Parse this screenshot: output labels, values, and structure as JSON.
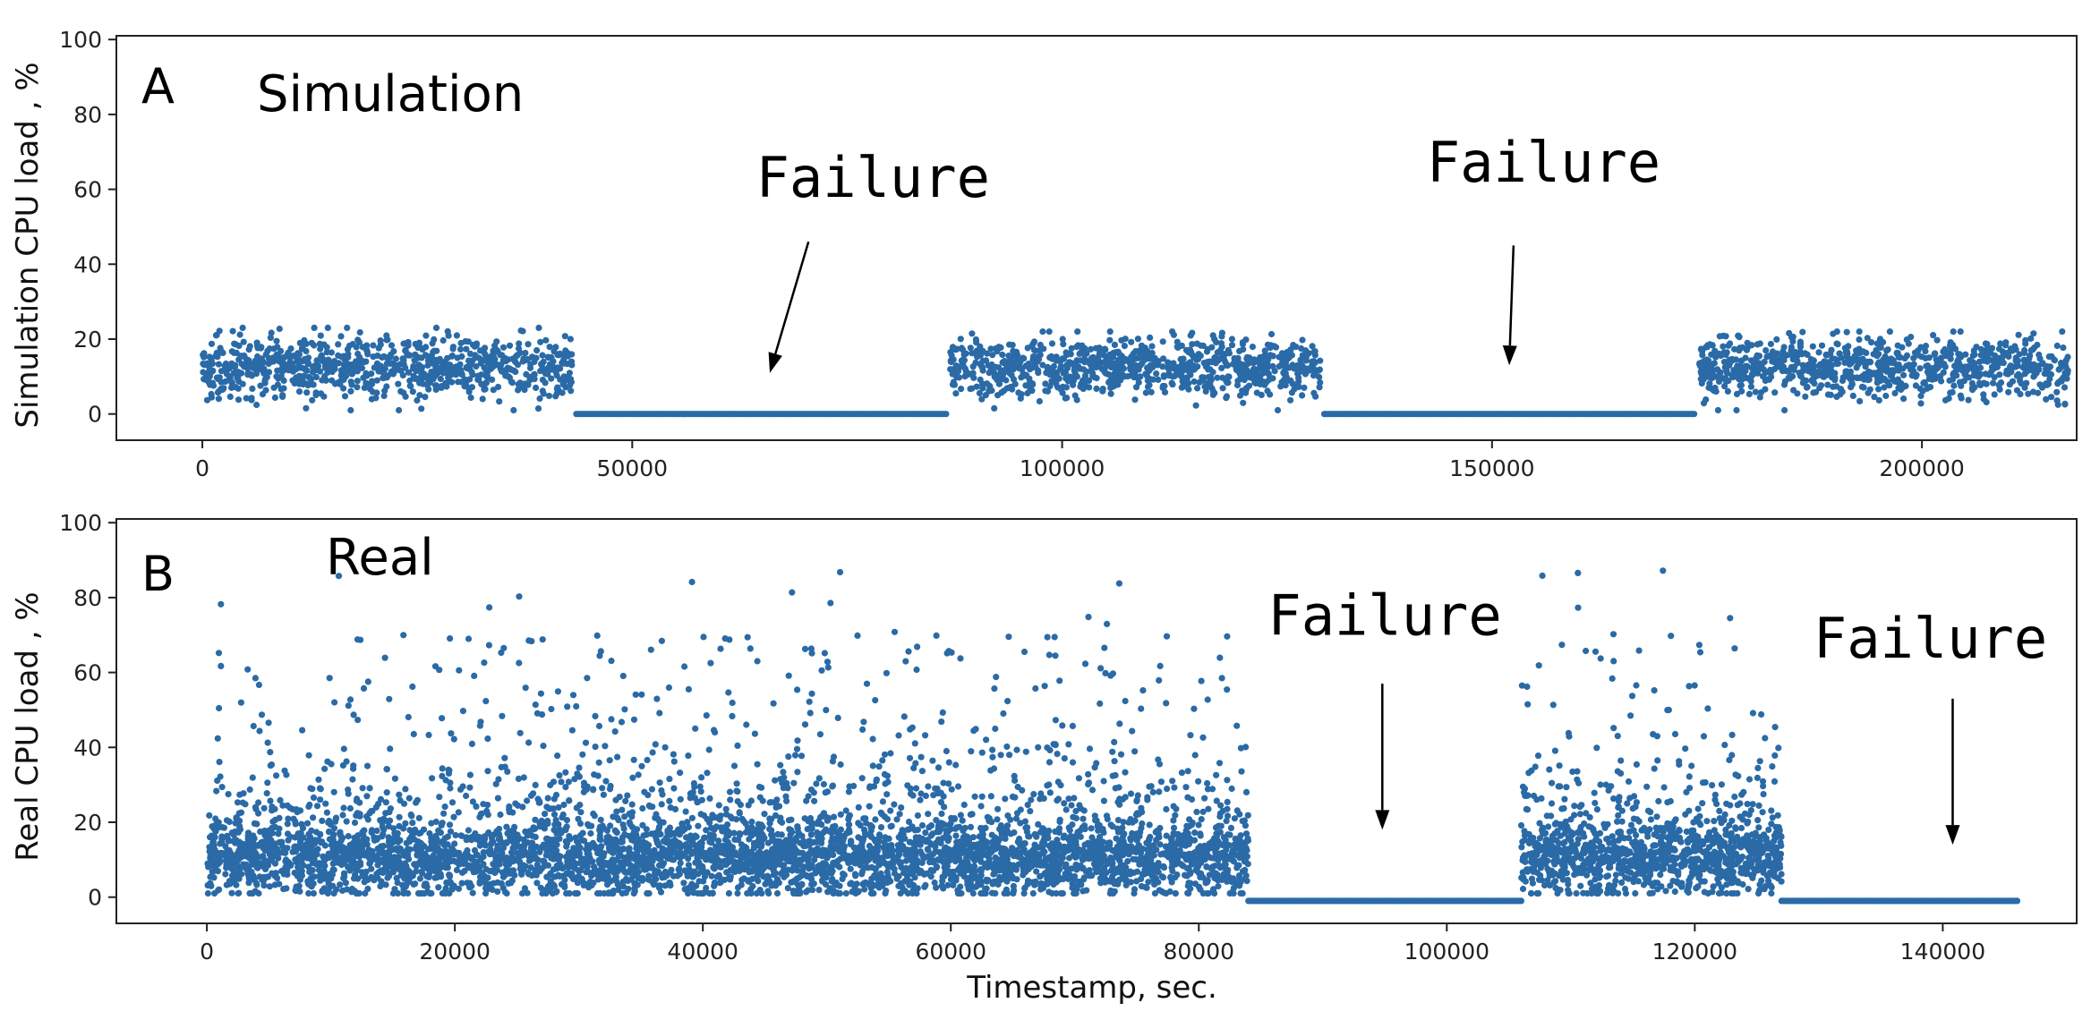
{
  "chart_data": [
    {
      "type": "scatter",
      "panel_label": "A",
      "title": "Simulation",
      "ylabel": "Simulation CPU load , %",
      "xlabel": "",
      "xlim": [
        -10000,
        218000
      ],
      "ylim": [
        -7,
        101
      ],
      "xticks": [
        0,
        50000,
        100000,
        150000,
        200000
      ],
      "xtick_labels": [
        "0",
        "50000",
        "100000",
        "150000",
        "200000"
      ],
      "yticks": [
        0,
        20,
        40,
        60,
        80,
        100
      ],
      "ytick_labels": [
        "0",
        "20",
        "40",
        "60",
        "80",
        "100"
      ],
      "grid": false,
      "color": "#2a6aa6",
      "series": [
        {
          "segments": [
            {
              "x_start": 0,
              "x_end": 43000,
              "kind": "noise",
              "mean": 12.5,
              "spread": 4,
              "min": 1,
              "max": 23
            },
            {
              "x_start": 43500,
              "x_end": 86500,
              "kind": "flat",
              "value": 0
            },
            {
              "x_start": 87000,
              "x_end": 130000,
              "kind": "noise",
              "mean": 12.5,
              "spread": 4,
              "min": 1,
              "max": 22
            },
            {
              "x_start": 130500,
              "x_end": 173500,
              "kind": "flat",
              "value": 0
            },
            {
              "x_start": 174000,
              "x_end": 217000,
              "kind": "noise",
              "mean": 12.5,
              "spread": 4,
              "min": 1,
              "max": 22
            }
          ]
        }
      ],
      "annotations": [
        {
          "text": "Failure",
          "text_x": 78000,
          "text_y": 58,
          "arrow_from": [
            70500,
            46
          ],
          "arrow_to": [
            66000,
            11
          ]
        },
        {
          "text": "Failure",
          "text_x": 156000,
          "text_y": 62,
          "arrow_from": [
            152500,
            45
          ],
          "arrow_to": [
            152000,
            13
          ]
        }
      ]
    },
    {
      "type": "scatter",
      "panel_label": "B",
      "title": "Real",
      "ylabel": "Real CPU load , %",
      "xlabel": "Timestamp, sec.",
      "xlim": [
        -7300,
        150800
      ],
      "ylim": [
        -7,
        101
      ],
      "xticks": [
        0,
        20000,
        40000,
        60000,
        80000,
        100000,
        120000,
        140000
      ],
      "xtick_labels": [
        "0",
        "20000",
        "40000",
        "60000",
        "80000",
        "100000",
        "120000",
        "140000"
      ],
      "yticks": [
        0,
        20,
        40,
        60,
        80,
        100
      ],
      "ytick_labels": [
        "0",
        "20",
        "40",
        "60",
        "80",
        "100"
      ],
      "grid": false,
      "color": "#2a6aa6",
      "series": [
        {
          "segments": [
            {
              "x_start": 0,
              "x_end": 84000,
              "kind": "bursty",
              "base_mean": 10,
              "base_spread": 5,
              "min": 1,
              "max": 98
            },
            {
              "x_start": 84000,
              "x_end": 106000,
              "kind": "flat",
              "value": -1
            },
            {
              "x_start": 106000,
              "x_end": 127000,
              "kind": "bursty",
              "base_mean": 10,
              "base_spread": 5,
              "min": 1,
              "max": 92
            },
            {
              "x_start": 127000,
              "x_end": 146000,
              "kind": "flat",
              "value": -1
            }
          ]
        }
      ],
      "annotations": [
        {
          "text": "Failure",
          "text_x": 95000,
          "text_y": 70,
          "arrow_from": [
            94800,
            57
          ],
          "arrow_to": [
            94800,
            18
          ]
        },
        {
          "text": "Failure",
          "text_x": 139000,
          "text_y": 64,
          "arrow_from": [
            140800,
            53
          ],
          "arrow_to": [
            140800,
            14
          ]
        }
      ]
    }
  ]
}
